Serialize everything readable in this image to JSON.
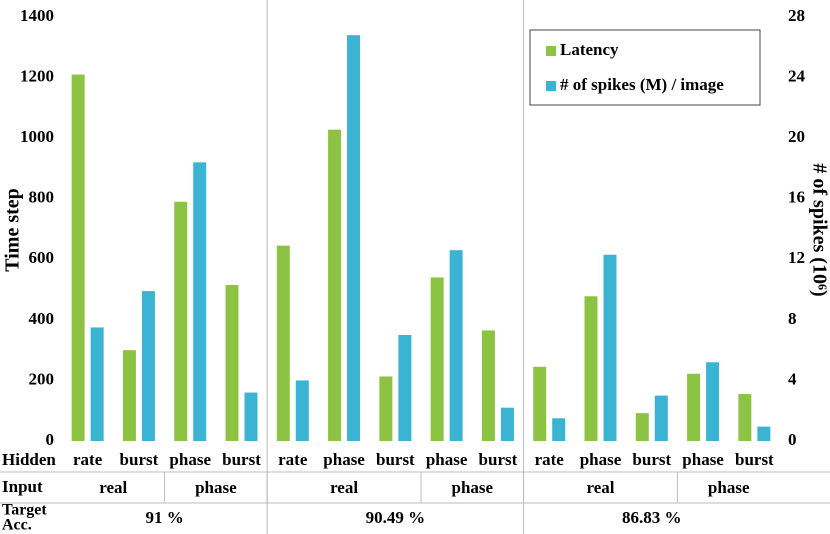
{
  "chart_data": {
    "type": "bar",
    "ylabel": "Time step",
    "y2label": "# of spikes (10⁶)",
    "categories": [
      "rate",
      "burst",
      "phase",
      "burst",
      "rate",
      "phase",
      "burst",
      "phase",
      "burst",
      "rate",
      "phase",
      "burst",
      "phase",
      "burst"
    ],
    "series": [
      {
        "name": "Latency",
        "color": "#8dc342",
        "values": [
          1210,
          300,
          790,
          515,
          645,
          1028,
          213,
          540,
          365,
          245,
          478,
          92,
          222,
          155
        ]
      },
      {
        "name": "# of spikes (M) / image",
        "color": "#3bb3d3",
        "axis": "y2",
        "values": [
          7.5,
          9.9,
          18.4,
          3.2,
          4.0,
          26.8,
          7.0,
          12.6,
          2.2,
          1.5,
          12.3,
          3.0,
          5.2,
          0.95
        ]
      }
    ],
    "ylim": [
      0,
      1400
    ],
    "yticks": [
      0,
      200,
      400,
      600,
      800,
      1000,
      1200,
      1400
    ],
    "y2lim": [
      0,
      28
    ],
    "y2ticks": [
      0,
      4,
      8,
      12,
      16,
      20,
      24,
      28
    ],
    "legend": "top-right",
    "table": {
      "hidden_label": "Hidden",
      "input_label": "Input",
      "acc_label": [
        "Target",
        "Acc."
      ],
      "inputs": [
        "real",
        null,
        "phase",
        null,
        "real",
        null,
        null,
        "phase",
        null,
        "real",
        null,
        null,
        "phase",
        null
      ],
      "accuracy": [
        "91 %",
        null,
        null,
        null,
        "90.49 %",
        null,
        null,
        null,
        null,
        "86.83 %",
        null,
        null,
        null,
        null
      ]
    }
  }
}
